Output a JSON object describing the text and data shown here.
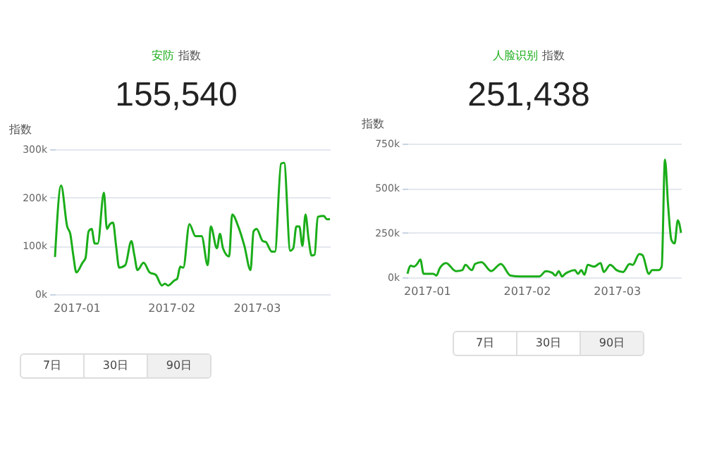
{
  "chart_data": [
    {
      "type": "line",
      "title": "安防 指数",
      "subtitle": "155,540",
      "ylabel": "指数",
      "annotations": [
        "7日",
        "30日",
        "90日"
      ],
      "xlim": [
        "2016-12-25",
        "2017-03-25"
      ],
      "xticks": [
        {
          "value": "2017-01-01",
          "label": "2017-01"
        },
        {
          "value": "2017-02-01",
          "label": "2017-02"
        },
        {
          "value": "2017-03-01",
          "label": "2017-03"
        }
      ],
      "ylim": [
        0,
        300000
      ],
      "yticks": [
        {
          "value": 0,
          "label": "0k"
        },
        {
          "value": 100000,
          "label": "100k"
        },
        {
          "value": 200000,
          "label": "200k"
        },
        {
          "value": 300000,
          "label": "300k"
        }
      ],
      "grid": "y",
      "marker": "none",
      "line_style": "solid",
      "x": [
        "2016-12-25",
        "2016-12-27",
        "2016-12-29",
        "2016-12-30",
        "2016-12-31",
        "2017-01-01",
        "2017-01-03",
        "2017-01-04",
        "2017-01-05",
        "2017-01-06",
        "2017-01-07",
        "2017-01-08",
        "2017-01-10",
        "2017-01-11",
        "2017-01-12",
        "2017-01-13",
        "2017-01-14",
        "2017-01-15",
        "2017-01-17",
        "2017-01-19",
        "2017-01-20",
        "2017-01-21",
        "2017-01-23",
        "2017-01-25",
        "2017-01-27",
        "2017-01-29",
        "2017-01-30",
        "2017-01-31",
        "2017-02-02",
        "2017-02-03",
        "2017-02-04",
        "2017-02-05",
        "2017-02-07",
        "2017-02-09",
        "2017-02-11",
        "2017-02-13",
        "2017-02-14",
        "2017-02-16",
        "2017-02-17",
        "2017-02-18",
        "2017-02-20",
        "2017-02-21",
        "2017-02-23",
        "2017-02-25",
        "2017-02-27",
        "2017-02-28",
        "2017-03-01",
        "2017-03-03",
        "2017-03-04",
        "2017-03-06",
        "2017-03-07",
        "2017-03-09",
        "2017-03-10",
        "2017-03-12",
        "2017-03-13",
        "2017-03-14",
        "2017-03-15",
        "2017-03-16",
        "2017-03-17",
        "2017-03-18",
        "2017-03-19",
        "2017-03-20",
        "2017-03-21",
        "2017-03-23",
        "2017-03-24",
        "2017-03-25"
      ],
      "series": [
        {
          "color": "#1aad19",
          "values": [
            77000,
            225000,
            140000,
            125000,
            80000,
            45000,
            65000,
            75000,
            130000,
            135000,
            105000,
            105000,
            210000,
            135000,
            145000,
            148000,
            100000,
            55000,
            60000,
            110000,
            80000,
            50000,
            65000,
            45000,
            40000,
            18000,
            22000,
            18000,
            28000,
            32000,
            57000,
            55000,
            145000,
            120000,
            120000,
            60000,
            140000,
            95000,
            125000,
            95000,
            78000,
            165000,
            140000,
            100000,
            50000,
            130000,
            135000,
            110000,
            108000,
            88000,
            88000,
            270000,
            272000,
            90000,
            95000,
            140000,
            140000,
            100000,
            165000,
            115000,
            80000,
            82000,
            160000,
            162000,
            155000,
            155000
          ]
        }
      ]
    },
    {
      "type": "line",
      "title": "人脸识别 指数",
      "subtitle": "251,438",
      "ylabel": "指数",
      "annotations": [
        "7日",
        "30日",
        "90日"
      ],
      "xlim": [
        "2016-12-26",
        "2017-03-21"
      ],
      "xticks": [
        {
          "value": "2017-01-01",
          "label": "2017-01"
        },
        {
          "value": "2017-02-01",
          "label": "2017-02"
        },
        {
          "value": "2017-03-01",
          "label": "2017-03"
        }
      ],
      "ylim": [
        0,
        750000
      ],
      "yticks": [
        {
          "value": 0,
          "label": "0k"
        },
        {
          "value": 250000,
          "label": "250k"
        },
        {
          "value": 500000,
          "label": "500k"
        },
        {
          "value": 750000,
          "label": "750k"
        }
      ],
      "grid": "y",
      "marker": "none",
      "line_style": "solid",
      "x": [
        "2016-12-26",
        "2016-12-27",
        "2016-12-28",
        "2016-12-29",
        "2016-12-30",
        "2016-12-31",
        "2017-01-01",
        "2017-01-03",
        "2017-01-04",
        "2017-01-05",
        "2017-01-07",
        "2017-01-10",
        "2017-01-12",
        "2017-01-13",
        "2017-01-15",
        "2017-01-16",
        "2017-01-18",
        "2017-01-21",
        "2017-01-24",
        "2017-01-27",
        "2017-01-30",
        "2017-02-01",
        "2017-02-05",
        "2017-02-07",
        "2017-02-09",
        "2017-02-10",
        "2017-02-11",
        "2017-02-12",
        "2017-02-13",
        "2017-02-14",
        "2017-02-16",
        "2017-02-17",
        "2017-02-18",
        "2017-02-19",
        "2017-02-20",
        "2017-02-22",
        "2017-02-24",
        "2017-02-25",
        "2017-02-27",
        "2017-03-01",
        "2017-03-03",
        "2017-03-05",
        "2017-03-06",
        "2017-03-08",
        "2017-03-09",
        "2017-03-11",
        "2017-03-12",
        "2017-03-14",
        "2017-03-15",
        "2017-03-16",
        "2017-03-17",
        "2017-03-18",
        "2017-03-19",
        "2017-03-20",
        "2017-03-21"
      ],
      "series": [
        {
          "color": "#1aad19",
          "values": [
            20000,
            65000,
            60000,
            75000,
            100000,
            20000,
            20000,
            20000,
            10000,
            50000,
            80000,
            35000,
            40000,
            70000,
            40000,
            75000,
            85000,
            35000,
            75000,
            10000,
            5000,
            5000,
            5000,
            35000,
            25000,
            10000,
            35000,
            5000,
            20000,
            30000,
            40000,
            20000,
            40000,
            15000,
            70000,
            60000,
            80000,
            30000,
            70000,
            40000,
            30000,
            75000,
            70000,
            130000,
            125000,
            20000,
            40000,
            40000,
            60000,
            660000,
            400000,
            210000,
            190000,
            320000,
            250000
          ]
        }
      ]
    }
  ]
}
